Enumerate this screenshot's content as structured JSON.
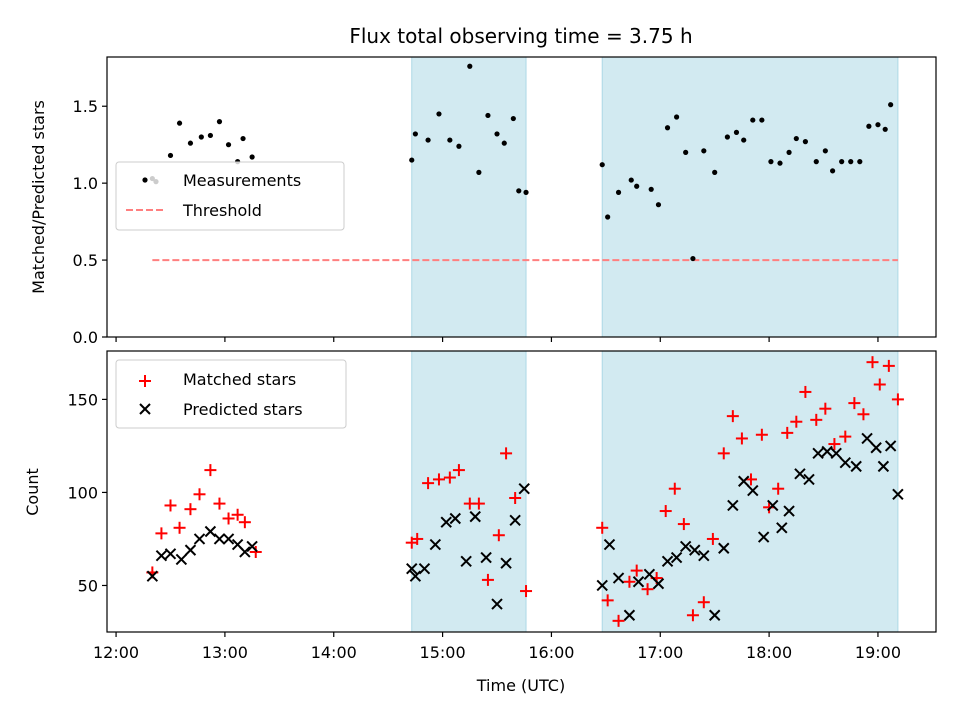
{
  "chart_data": [
    {
      "type": "scatter",
      "title": "Flux total observing time = 3.75 h",
      "xlabel": "",
      "ylabel": "Matched/Predicted stars",
      "xlim": [
        "11:55",
        "19:32"
      ],
      "ylim": [
        0,
        1.82
      ],
      "yticks": [
        0.0,
        0.5,
        1.0,
        1.5
      ],
      "ytick_labels": [
        "0.0",
        "0.5",
        "1.0",
        "1.5"
      ],
      "xticks": [
        "12:00",
        "13:00",
        "14:00",
        "15:00",
        "16:00",
        "17:00",
        "18:00",
        "19:00"
      ],
      "legend_location": "center-left",
      "shaded_intervals": [
        [
          "14:43",
          "15:46"
        ],
        [
          "16:28",
          "19:11"
        ]
      ],
      "shade_color": "#add8e6",
      "threshold": {
        "name": "Threshold",
        "value": 0.5,
        "x_range": [
          "12:20",
          "19:11"
        ],
        "color": "#ff7f7f",
        "style": "dashed"
      },
      "series": [
        {
          "name": "Measurements",
          "marker": "dot",
          "color": "#000000",
          "x": [
            "12:20",
            "12:22",
            "12:30",
            "12:35",
            "12:41",
            "12:47",
            "12:52",
            "12:57",
            "13:02",
            "13:07",
            "13:10",
            "13:15",
            "14:43",
            "14:45",
            "14:52",
            "14:58",
            "15:04",
            "15:09",
            "15:15",
            "15:20",
            "15:25",
            "15:30",
            "15:34",
            "15:39",
            "15:42",
            "15:46",
            "16:28",
            "16:31",
            "16:37",
            "16:44",
            "16:47",
            "16:55",
            "16:59",
            "17:04",
            "17:09",
            "17:14",
            "17:18",
            "17:24",
            "17:30",
            "17:37",
            "17:42",
            "17:46",
            "17:51",
            "17:56",
            "18:01",
            "18:06",
            "18:11",
            "18:15",
            "18:20",
            "18:26",
            "18:31",
            "18:35",
            "18:40",
            "18:45",
            "18:50",
            "18:55",
            "19:00",
            "19:04",
            "19:07"
          ],
          "y": [
            1.03,
            1.01,
            1.18,
            1.39,
            1.26,
            1.3,
            1.31,
            1.4,
            1.25,
            1.14,
            1.29,
            1.17,
            1.15,
            1.32,
            1.28,
            1.45,
            1.28,
            1.24,
            1.76,
            1.07,
            1.44,
            1.32,
            1.26,
            1.42,
            0.95,
            0.94,
            1.12,
            0.78,
            0.94,
            1.02,
            0.98,
            0.96,
            0.86,
            1.36,
            1.43,
            1.2,
            0.51,
            1.21,
            1.07,
            1.3,
            1.33,
            1.28,
            1.41,
            1.41,
            1.14,
            1.13,
            1.2,
            1.29,
            1.27,
            1.14,
            1.21,
            1.08,
            1.14,
            1.14,
            1.14,
            1.37,
            1.38,
            1.35,
            1.51
          ]
        }
      ]
    },
    {
      "type": "scatter",
      "title": "",
      "xlabel": "Time (UTC)",
      "ylabel": "Count",
      "xlim": [
        "11:55",
        "19:32"
      ],
      "ylim": [
        25,
        176
      ],
      "yticks": [
        50,
        100,
        150
      ],
      "ytick_labels": [
        "50",
        "100",
        "150"
      ],
      "xticks": [
        "12:00",
        "13:00",
        "14:00",
        "15:00",
        "16:00",
        "17:00",
        "18:00",
        "19:00"
      ],
      "legend_location": "upper-left",
      "shaded_intervals": [
        [
          "14:43",
          "15:46"
        ],
        [
          "16:28",
          "19:11"
        ]
      ],
      "shade_color": "#add8e6",
      "series": [
        {
          "name": "Matched stars",
          "marker": "plus",
          "color": "#ff0000",
          "x": [
            "12:20",
            "12:25",
            "12:30",
            "12:35",
            "12:41",
            "12:46",
            "12:52",
            "12:57",
            "13:02",
            "13:07",
            "13:11",
            "13:17",
            "14:43",
            "14:46",
            "14:52",
            "14:58",
            "15:04",
            "15:09",
            "15:15",
            "15:20",
            "15:25",
            "15:31",
            "15:35",
            "15:40",
            "15:46",
            "16:28",
            "16:31",
            "16:37",
            "16:43",
            "16:47",
            "16:53",
            "16:58",
            "17:03",
            "17:08",
            "17:13",
            "17:18",
            "17:24",
            "17:29",
            "17:35",
            "17:40",
            "17:45",
            "17:50",
            "17:56",
            "18:00",
            "18:05",
            "18:10",
            "18:15",
            "18:20",
            "18:26",
            "18:31",
            "18:36",
            "18:42",
            "18:47",
            "18:52",
            "18:57",
            "19:01",
            "19:06",
            "19:11"
          ],
          "y": [
            57,
            78,
            93,
            81,
            91,
            99,
            112,
            94,
            86,
            88,
            84,
            68,
            73,
            75,
            105,
            107,
            108,
            112,
            94,
            94,
            53,
            77,
            121,
            97,
            47,
            81,
            42,
            31,
            52,
            58,
            48,
            54,
            90,
            102,
            83,
            34,
            41,
            75,
            121,
            141,
            129,
            107,
            131,
            92,
            102,
            132,
            138,
            154,
            139,
            145,
            126,
            130,
            148,
            142,
            170,
            158,
            168,
            150
          ]
        },
        {
          "name": "Predicted stars",
          "marker": "x",
          "color": "#000000",
          "x": [
            "12:20",
            "12:25",
            "12:30",
            "12:36",
            "12:41",
            "12:46",
            "12:52",
            "12:57",
            "13:02",
            "13:07",
            "13:11",
            "13:15",
            "14:43",
            "14:45",
            "14:50",
            "14:56",
            "15:02",
            "15:07",
            "15:13",
            "15:18",
            "15:24",
            "15:30",
            "15:35",
            "15:40",
            "15:45",
            "16:28",
            "16:32",
            "16:37",
            "16:43",
            "16:48",
            "16:54",
            "16:59",
            "17:04",
            "17:09",
            "17:14",
            "17:19",
            "17:24",
            "17:30",
            "17:35",
            "17:40",
            "17:46",
            "17:51",
            "17:57",
            "18:02",
            "18:07",
            "18:11",
            "18:17",
            "18:22",
            "18:27",
            "18:32",
            "18:37",
            "18:42",
            "18:48",
            "18:54",
            "18:59",
            "19:03",
            "19:07",
            "19:11"
          ],
          "y": [
            55,
            66,
            67,
            64,
            69,
            75,
            79,
            75,
            75,
            72,
            68,
            71,
            59,
            55,
            59,
            72,
            84,
            86,
            63,
            87,
            65,
            40,
            62,
            85,
            102,
            50,
            72,
            54,
            34,
            52,
            56,
            51,
            63,
            65,
            71,
            69,
            66,
            34,
            70,
            93,
            106,
            101,
            76,
            93,
            81,
            90,
            110,
            107,
            121,
            122,
            121,
            116,
            114,
            129,
            124,
            114,
            125,
            99
          ]
        }
      ]
    }
  ]
}
